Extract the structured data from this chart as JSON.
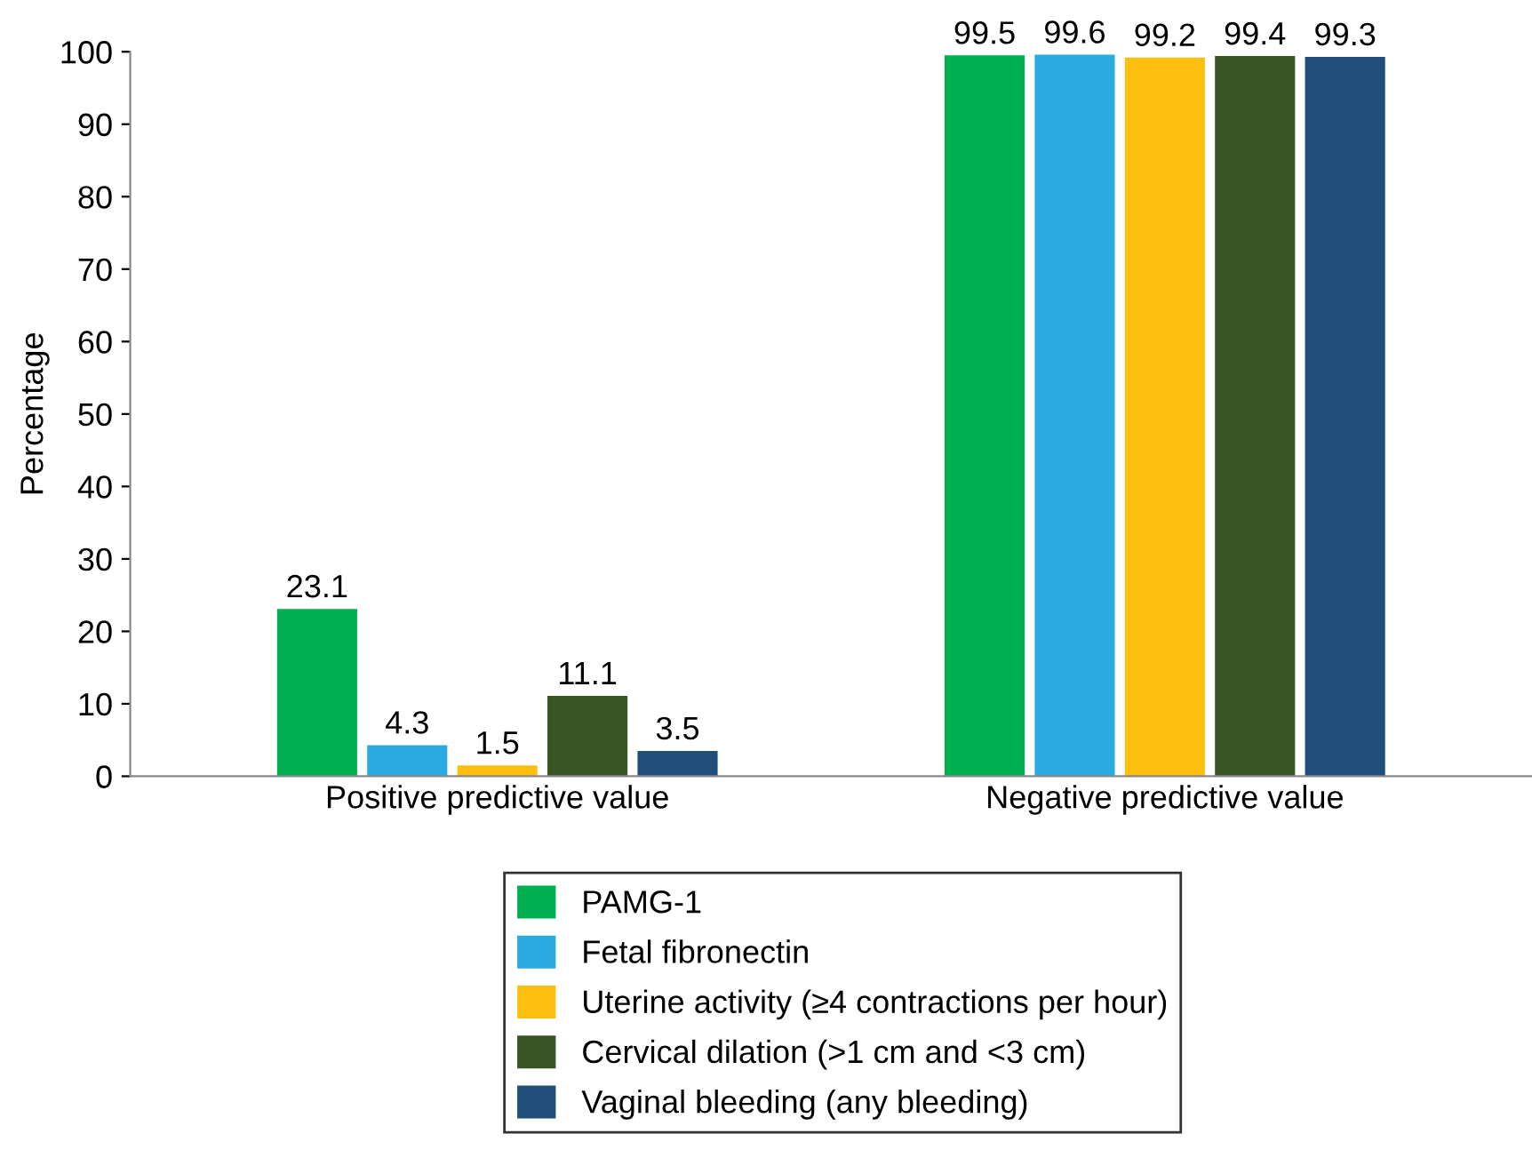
{
  "chart_data": {
    "type": "bar",
    "ylabel": "Percentage",
    "categories": [
      "Positive predictive value",
      "Negative predictive value"
    ],
    "series": [
      {
        "name": "PAMG-1",
        "color": "#00b050",
        "values": [
          23.1,
          99.5
        ]
      },
      {
        "name": "Fetal fibronectin",
        "color": "#29abe2",
        "values": [
          4.3,
          99.6
        ]
      },
      {
        "name": "Uterine activity (≥4 contractions per hour)",
        "color": "#fdc010",
        "values": [
          1.5,
          99.2
        ]
      },
      {
        "name": "Cervical dilation (>1 cm and <3 cm)",
        "color": "#375623",
        "values": [
          11.1,
          99.4
        ]
      },
      {
        "name": "Vaginal bleeding (any bleeding)",
        "color": "#1f4e79",
        "values": [
          3.5,
          99.3
        ]
      }
    ],
    "ylim": [
      0,
      100
    ],
    "yticks": [
      0,
      10,
      20,
      30,
      40,
      50,
      60,
      70,
      80,
      90,
      100
    ],
    "data_labels": true,
    "legend": "bottom",
    "grid": false
  }
}
